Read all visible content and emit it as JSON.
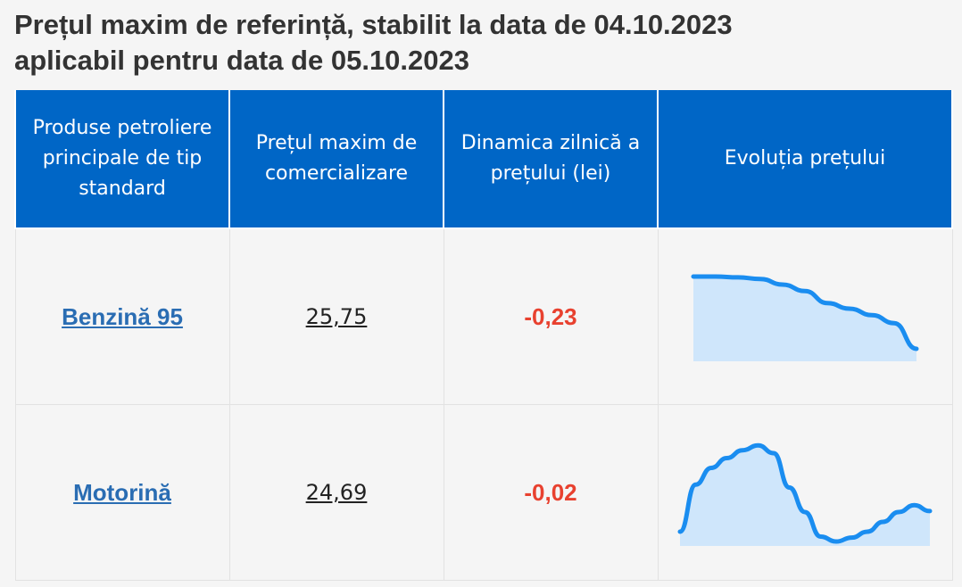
{
  "header": {
    "title_line1": "Prețul maxim de referință, stabilit la data de 04.10.2023",
    "title_line2": "aplicabil pentru data de 05.10.2023"
  },
  "table": {
    "columns": [
      "Produse petroliere principale de tip standard",
      "Prețul maxim de comercializare",
      "Dinamica zilnică a prețului (lei)",
      "Evoluția prețului"
    ],
    "rows": [
      {
        "product": "Benzină 95",
        "price": "25,75",
        "change": "-0,23",
        "trend": [
          1.0,
          1.0,
          0.99,
          0.97,
          0.9,
          0.82,
          0.67,
          0.6,
          0.52,
          0.42,
          0.1
        ]
      },
      {
        "product": "Motorină",
        "price": "24,69",
        "change": "-0,02",
        "trend": [
          0.1,
          0.58,
          0.75,
          0.85,
          0.93,
          0.98,
          0.9,
          0.55,
          0.3,
          0.05,
          0.0,
          0.04,
          0.1,
          0.2,
          0.3,
          0.37,
          0.31
        ]
      }
    ]
  },
  "colors": {
    "header_bg": "#0066c6",
    "link": "#2a6db3",
    "negative": "#e8412f",
    "spark_line": "#1a8df0",
    "spark_fill": "#cfe6fb"
  }
}
